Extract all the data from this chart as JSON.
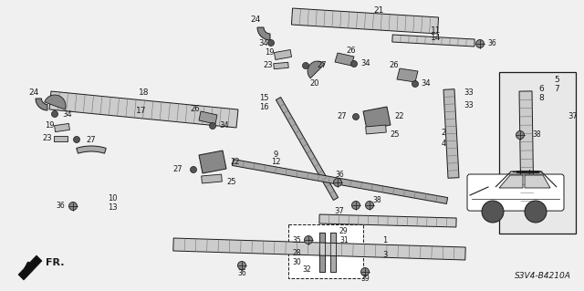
{
  "bg_color": "#f0f0f0",
  "diagram_code": "S3V4-B4210A",
  "fr_label": "FR.",
  "dark": "#1a1a1a",
  "gray": "#666666",
  "light_gray": "#cccccc",
  "mid_gray": "#999999"
}
